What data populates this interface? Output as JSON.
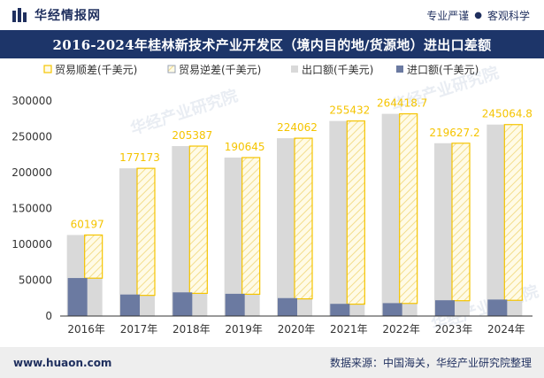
{
  "header": {
    "brand": "华经情报网",
    "tag_1": "专业严谨",
    "tag_2": "客观科学",
    "separator": "●"
  },
  "title": "2016-2024年桂林新技术产业开发区（境内目的地/货源地）进出口差额",
  "footer": {
    "site": "www.huaon.com",
    "source": "数据来源：中国海关，华经产业研究院整理"
  },
  "watermark": "华经产业研究院",
  "colors": {
    "export": "#d9d9d9",
    "import": "#6b7aa1",
    "surplus_border": "#f5c400",
    "surplus_label": "#f5c400",
    "title_bg": "#1d3569"
  },
  "chart_data": {
    "type": "bar",
    "categories": [
      "2016年",
      "2017年",
      "2018年",
      "2019年",
      "2020年",
      "2021年",
      "2022年",
      "2023年",
      "2024年"
    ],
    "series": [
      {
        "name": "贸易顺差(千美元)",
        "values": [
          60197,
          177173,
          205387,
          190645,
          224062,
          255432,
          264418.7,
          219627.2,
          245064.8
        ]
      },
      {
        "name": "贸易逆差(千美元)",
        "values": [
          null,
          null,
          null,
          null,
          null,
          null,
          null,
          null,
          null
        ]
      },
      {
        "name": "出口额(千美元)",
        "values": [
          113000,
          206000,
          237000,
          221000,
          248000,
          272000,
          282000,
          241000,
          267000
        ]
      },
      {
        "name": "进口额(千美元)",
        "values": [
          53000,
          30000,
          33000,
          31000,
          25000,
          17000,
          18000,
          22000,
          23000
        ]
      }
    ],
    "data_labels": [
      "60197",
      "177173",
      "205387",
      "190645",
      "224062",
      "255432",
      "264418.7",
      "219627.2",
      "245064.8"
    ],
    "y_ticks": [
      "0",
      "50000",
      "100000",
      "150000",
      "200000",
      "250000",
      "300000"
    ],
    "ylim": [
      0,
      300000
    ],
    "legend_position": "top",
    "grid": false
  }
}
